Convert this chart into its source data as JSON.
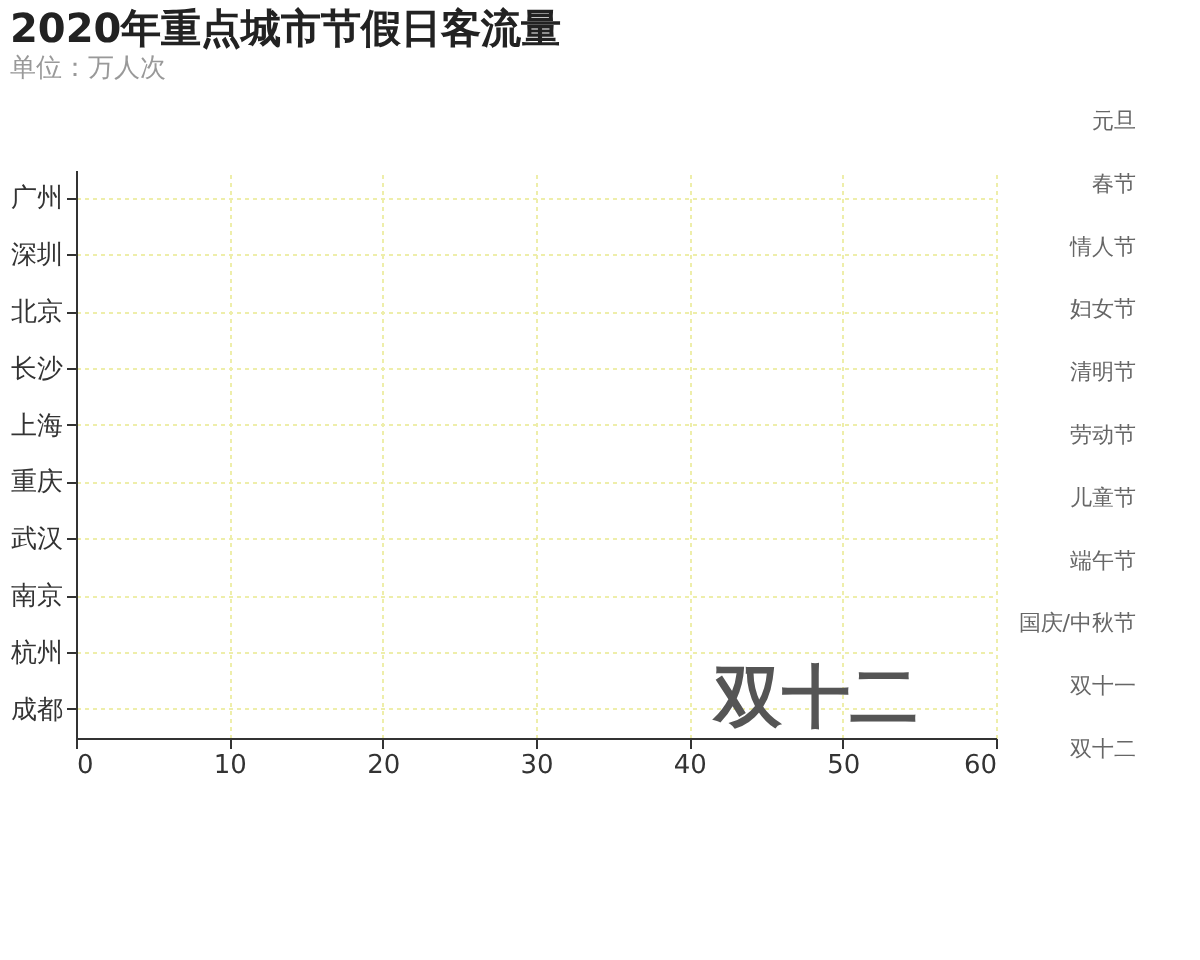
{
  "chart_data": {
    "type": "bar",
    "orientation": "horizontal",
    "title": "2020年重点城市节假日客流量",
    "subtitle": "单位：万人次",
    "categories": [
      "广州",
      "深圳",
      "北京",
      "长沙",
      "上海",
      "重庆",
      "武汉",
      "南京",
      "杭州",
      "成都"
    ],
    "values": [
      0,
      0,
      0,
      0,
      0,
      0,
      0,
      0,
      0,
      0
    ],
    "xlim": [
      0,
      60
    ],
    "xticks": [
      0,
      10,
      20,
      30,
      40,
      50,
      60
    ],
    "grid": true,
    "annotations": [
      "双十二",
      "元旦",
      "春节",
      "情人节",
      "妇女节",
      "清明节",
      "劳动节",
      "儿童节",
      "端午节",
      "国庆/中秋节",
      "双十一",
      "双十二"
    ]
  }
}
